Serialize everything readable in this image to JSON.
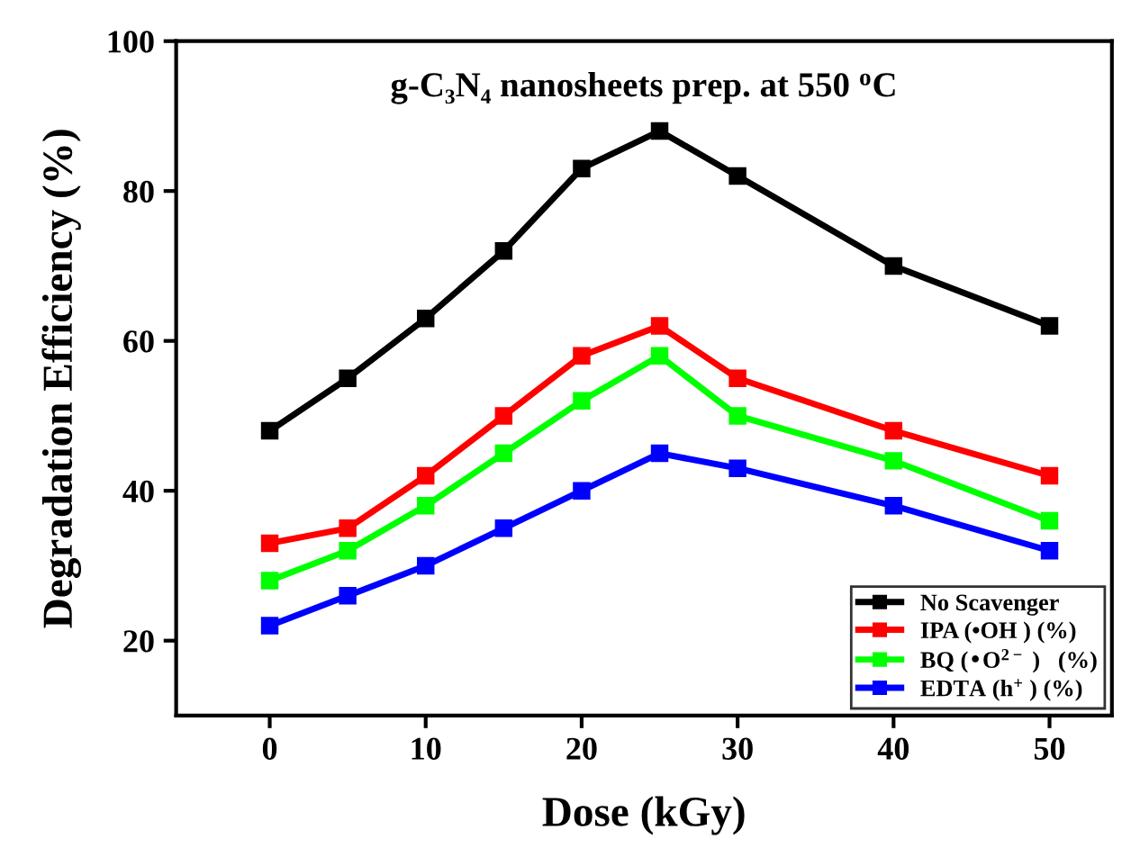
{
  "chart_data": {
    "type": "line",
    "title": "g-C₃N₄ nanosheets prep. at 550 $^{o}$C",
    "xlabel": "Dose (kGy)",
    "ylabel": "Degradation Efficiency (%)",
    "x": [
      0,
      5,
      10,
      15,
      20,
      25,
      30,
      40,
      50
    ],
    "series": [
      {
        "name": "No Scavenger",
        "color": "#000000",
        "values": [
          48,
          55,
          63,
          72,
          83,
          88,
          82,
          70,
          62
        ]
      },
      {
        "name": "IPA (•OH ) (%)",
        "color": "#ff0000",
        "values": [
          33,
          35,
          42,
          50,
          58,
          62,
          55,
          48,
          42
        ]
      },
      {
        "name": "BQ (•O$^{2−}$ )   (%)",
        "color": "#00ff00",
        "values": [
          28,
          32,
          38,
          45,
          52,
          58,
          50,
          44,
          36
        ]
      },
      {
        "name": "EDTA (h$^{+}$ ) (%)",
        "color": "#0000ff",
        "values": [
          22,
          26,
          30,
          35,
          40,
          45,
          43,
          38,
          32
        ]
      }
    ],
    "xlim": [
      -6,
      54
    ],
    "xticks": [
      0,
      10,
      20,
      30,
      40,
      50
    ],
    "ylim": [
      10,
      100
    ],
    "yticks": [
      20,
      40,
      60,
      80,
      100
    ],
    "grid": false,
    "legend": "bottom right",
    "marker": "square",
    "line_style": "solid"
  }
}
